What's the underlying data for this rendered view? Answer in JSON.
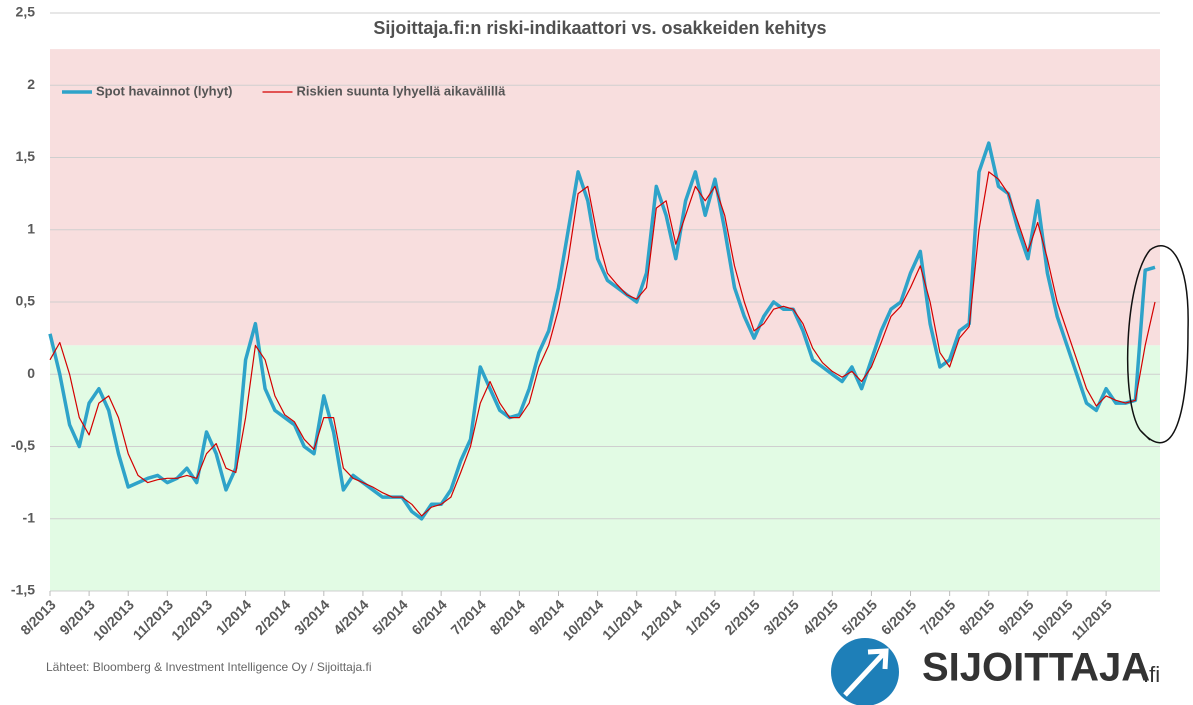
{
  "chart_data": {
    "type": "line",
    "title": "Sijoittaja.fi:n riski-indikaattori vs. osakkeiden kehitys",
    "source": "Lähteet: Bloomberg & Investment Intelligence Oy / Sijoittaja.fi",
    "logo": {
      "text": "SIJOITTAJA",
      "suffix": ".fi"
    },
    "legend": "top-left",
    "grid": true,
    "ylim": [
      -1.5,
      2.5
    ],
    "yticks": [
      {
        "value": 2.5,
        "label": "2,5"
      },
      2,
      {
        "value": 1.5,
        "label": "1,5"
      },
      1,
      {
        "value": 0.5,
        "label": "0,5"
      },
      0,
      {
        "value": -0.5,
        "label": "-0,5"
      },
      -1,
      {
        "value": -1.5,
        "label": "-1,5"
      }
    ],
    "bands": [
      {
        "from": 0.2,
        "to": 2.25,
        "color": "#f8dede"
      },
      {
        "from": -1.5,
        "to": 0.2,
        "color": "#e2fbe4"
      }
    ],
    "categories": [
      "8/2013",
      null,
      null,
      null,
      "9/2013",
      null,
      null,
      null,
      "10/2013",
      null,
      null,
      null,
      "11/2013",
      null,
      null,
      null,
      "12/2013",
      null,
      null,
      null,
      "1/2014",
      null,
      null,
      null,
      "2/2014",
      null,
      null,
      null,
      "3/2014",
      null,
      null,
      null,
      "4/2014",
      null,
      null,
      null,
      "5/2014",
      null,
      null,
      null,
      "6/2014",
      null,
      null,
      null,
      "7/2014",
      null,
      null,
      null,
      "8/2014",
      null,
      null,
      null,
      "9/2014",
      null,
      null,
      null,
      "10/2014",
      null,
      null,
      null,
      "11/2014",
      null,
      null,
      null,
      "12/2014",
      null,
      null,
      null,
      "1/2015",
      null,
      null,
      null,
      "2/2015",
      null,
      null,
      null,
      "3/2015",
      null,
      null,
      null,
      "4/2015",
      null,
      null,
      null,
      "5/2015",
      null,
      null,
      null,
      "6/2015",
      null,
      null,
      null,
      "7/2015",
      null,
      null,
      null,
      "8/2015",
      null,
      null,
      null,
      "9/2015",
      null,
      null,
      null,
      "10/2015",
      null,
      null,
      null,
      "11/2015",
      null,
      null,
      null,
      null,
      null
    ],
    "series": [
      {
        "name": "Spot havainnot (lyhyt)",
        "color": "#2ea3c9",
        "width": 3.5,
        "values": [
          0.28,
          0.0,
          -0.35,
          -0.5,
          -0.2,
          -0.1,
          -0.25,
          -0.55,
          -0.78,
          -0.75,
          -0.72,
          -0.7,
          -0.75,
          -0.72,
          -0.65,
          -0.75,
          -0.4,
          -0.55,
          -0.8,
          -0.65,
          0.1,
          0.35,
          -0.1,
          -0.25,
          -0.3,
          -0.35,
          -0.5,
          -0.55,
          -0.15,
          -0.4,
          -0.8,
          -0.7,
          -0.75,
          -0.8,
          -0.85,
          -0.85,
          -0.85,
          -0.95,
          -1.0,
          -0.9,
          -0.9,
          -0.8,
          -0.6,
          -0.45,
          0.05,
          -0.1,
          -0.25,
          -0.3,
          -0.28,
          -0.1,
          0.15,
          0.3,
          0.6,
          1.0,
          1.4,
          1.2,
          0.8,
          0.65,
          0.6,
          0.55,
          0.5,
          0.7,
          1.3,
          1.1,
          0.8,
          1.2,
          1.4,
          1.1,
          1.35,
          1.0,
          0.6,
          0.4,
          0.25,
          0.4,
          0.5,
          0.45,
          0.45,
          0.3,
          0.1,
          0.05,
          0.0,
          -0.05,
          0.05,
          -0.1,
          0.1,
          0.3,
          0.45,
          0.5,
          0.7,
          0.85,
          0.35,
          0.05,
          0.1,
          0.3,
          0.35,
          1.4,
          1.6,
          1.3,
          1.25,
          1.0,
          0.8,
          1.2,
          0.7,
          0.4,
          0.2,
          0.0,
          -0.2,
          -0.25,
          -0.1,
          -0.2,
          -0.2,
          -0.18,
          0.72,
          0.74
        ]
      },
      {
        "name": "Riskien suunta lyhyellä aikavälillä",
        "color": "#d40000",
        "width": 1.2,
        "values": [
          0.1,
          0.22,
          0.0,
          -0.3,
          -0.42,
          -0.2,
          -0.15,
          -0.3,
          -0.55,
          -0.7,
          -0.75,
          -0.73,
          -0.72,
          -0.72,
          -0.7,
          -0.72,
          -0.55,
          -0.48,
          -0.65,
          -0.68,
          -0.3,
          0.2,
          0.1,
          -0.15,
          -0.28,
          -0.33,
          -0.45,
          -0.52,
          -0.3,
          -0.3,
          -0.65,
          -0.72,
          -0.75,
          -0.78,
          -0.82,
          -0.85,
          -0.85,
          -0.9,
          -0.98,
          -0.92,
          -0.9,
          -0.85,
          -0.68,
          -0.5,
          -0.2,
          -0.05,
          -0.2,
          -0.3,
          -0.3,
          -0.2,
          0.05,
          0.2,
          0.45,
          0.8,
          1.25,
          1.3,
          0.95,
          0.7,
          0.62,
          0.55,
          0.52,
          0.6,
          1.15,
          1.2,
          0.9,
          1.1,
          1.3,
          1.2,
          1.3,
          1.1,
          0.75,
          0.5,
          0.3,
          0.35,
          0.45,
          0.47,
          0.45,
          0.35,
          0.18,
          0.08,
          0.02,
          -0.02,
          0.02,
          -0.05,
          0.05,
          0.22,
          0.4,
          0.47,
          0.6,
          0.75,
          0.5,
          0.15,
          0.05,
          0.25,
          0.33,
          1.0,
          1.4,
          1.35,
          1.25,
          1.05,
          0.85,
          1.05,
          0.8,
          0.5,
          0.3,
          0.1,
          -0.1,
          -0.22,
          -0.15,
          -0.18,
          -0.2,
          -0.18,
          0.2,
          0.5
        ]
      }
    ]
  }
}
